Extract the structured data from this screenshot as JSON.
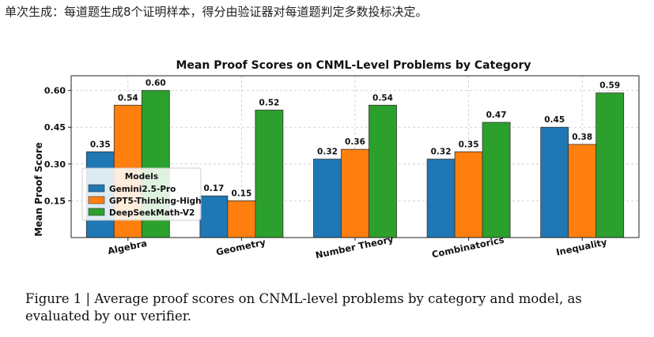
{
  "top_note": "单次生成：每道题生成8个证明样本，得分由验证器对每道题判定多数投标决定。",
  "caption": "Figure 1 | Average proof scores on CNML-level problems by category and model, as evaluated by our verifier.",
  "colors": {
    "series": [
      "#1f77b4",
      "#ff7f0e",
      "#2ca02c"
    ],
    "grid": "#c8c8c8",
    "bar_edge": "#333333"
  },
  "chart_data": {
    "type": "bar",
    "title": "Mean Proof Scores on CNML-Level Problems by Category",
    "xlabel": "",
    "ylabel": "Mean Proof Score",
    "ylim": [
      0,
      0.66
    ],
    "yticks": [
      0.15,
      0.3,
      0.45,
      0.6
    ],
    "ytick_labels": [
      "0.15",
      "0.30",
      "0.45",
      "0.60"
    ],
    "grid": true,
    "legend_title": "Models",
    "legend_position": "center-left",
    "categories": [
      "Algebra",
      "Geometry",
      "Number Theory",
      "Combinatorics",
      "Inequality"
    ],
    "series": [
      {
        "name": "Gemini2.5-Pro",
        "values": [
          0.35,
          0.17,
          0.32,
          0.32,
          0.45
        ],
        "labels": [
          "0.35",
          "0.17",
          "0.32",
          "0.32",
          "0.45"
        ]
      },
      {
        "name": "GPT5-Thinking-High",
        "values": [
          0.54,
          0.15,
          0.36,
          0.35,
          0.38
        ],
        "labels": [
          "0.54",
          "0.15",
          "0.36",
          "0.35",
          "0.38"
        ]
      },
      {
        "name": "DeepSeekMath-V2",
        "values": [
          0.6,
          0.52,
          0.54,
          0.47,
          0.59
        ],
        "labels": [
          "0.60",
          "0.52",
          "0.54",
          "0.47",
          "0.59"
        ]
      }
    ]
  }
}
